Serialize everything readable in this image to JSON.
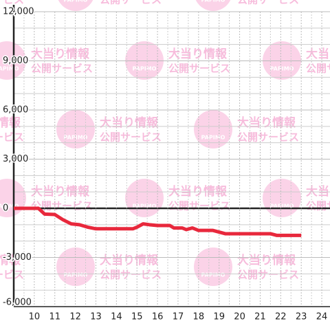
{
  "chart_data": {
    "type": "line",
    "watermark": {
      "title": "大当り情報",
      "subtitle": "公開サービス",
      "logo": "PAPIMO"
    },
    "xlim": [
      9,
      24.4
    ],
    "ylim": [
      -6000,
      12000
    ],
    "xticks": [
      10,
      11,
      12,
      13,
      14,
      15,
      16,
      17,
      18,
      19,
      20,
      21,
      22,
      23,
      24
    ],
    "xminor": [
      9.5,
      10.5,
      11.5,
      12.5,
      13.5,
      14.5,
      15.5,
      16.5,
      17.5,
      18.5,
      19.5,
      20.5,
      21.5,
      22.5,
      23.5
    ],
    "yticks": [
      {
        "value": -6000,
        "label": "-6,000"
      },
      {
        "value": -3000,
        "label": "-3,000"
      },
      0,
      {
        "value": 3000,
        "label": "3,000"
      },
      {
        "value": 6000,
        "label": "6,000"
      },
      {
        "value": 9000,
        "label": "9,000"
      },
      {
        "value": 12000,
        "label": "12,000"
      }
    ],
    "yminor": [
      -5000,
      -4000,
      -2000,
      -1000,
      1000,
      2000,
      4000,
      5000,
      7000,
      8000,
      10000,
      11000
    ],
    "grid": true,
    "series": [
      {
        "color": "#e8283c",
        "x": [
          9.0,
          10.2,
          10.5,
          11.0,
          11.4,
          11.8,
          12.2,
          12.6,
          13.0,
          14.8,
          15.0,
          15.3,
          15.6,
          16.0,
          16.6,
          16.8,
          17.2,
          17.4,
          17.7,
          18.0,
          18.7,
          19.0,
          19.3,
          21.5,
          21.8,
          23.0
        ],
        "values": [
          0,
          0,
          -350,
          -380,
          -700,
          -950,
          -1000,
          -1150,
          -1250,
          -1250,
          -1150,
          -950,
          -1000,
          -1050,
          -1050,
          -1200,
          -1200,
          -1300,
          -1200,
          -1350,
          -1350,
          -1450,
          -1550,
          -1550,
          -1650,
          -1650
        ]
      }
    ]
  }
}
